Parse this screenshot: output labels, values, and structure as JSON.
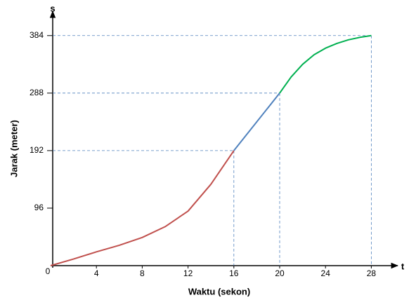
{
  "chart_data": {
    "type": "line",
    "x_label": "Waktu (sekon)",
    "y_label": "Jarak (meter)",
    "x_axis_symbol": "t",
    "y_axis_symbol": "s",
    "xlim": [
      0,
      30
    ],
    "ylim": [
      0,
      420
    ],
    "xticks": [
      0,
      4,
      8,
      12,
      16,
      20,
      24,
      28
    ],
    "yticks": [
      96,
      192,
      288,
      384
    ],
    "guides": true,
    "series": [
      {
        "color": "#c0504d",
        "x": [
          0,
          2,
          4,
          6,
          8,
          10,
          12,
          14,
          16
        ],
        "values": [
          0,
          11,
          23,
          34,
          47,
          65,
          91,
          136,
          192
        ]
      },
      {
        "color": "#4f81bd",
        "x": [
          16,
          20
        ],
        "values": [
          192,
          288
        ]
      },
      {
        "color": "#00b050",
        "x": [
          20,
          21,
          22,
          23,
          24,
          25,
          26,
          27,
          28
        ],
        "values": [
          288,
          315,
          336,
          352,
          363,
          371,
          377,
          381,
          384
        ]
      }
    ]
  }
}
